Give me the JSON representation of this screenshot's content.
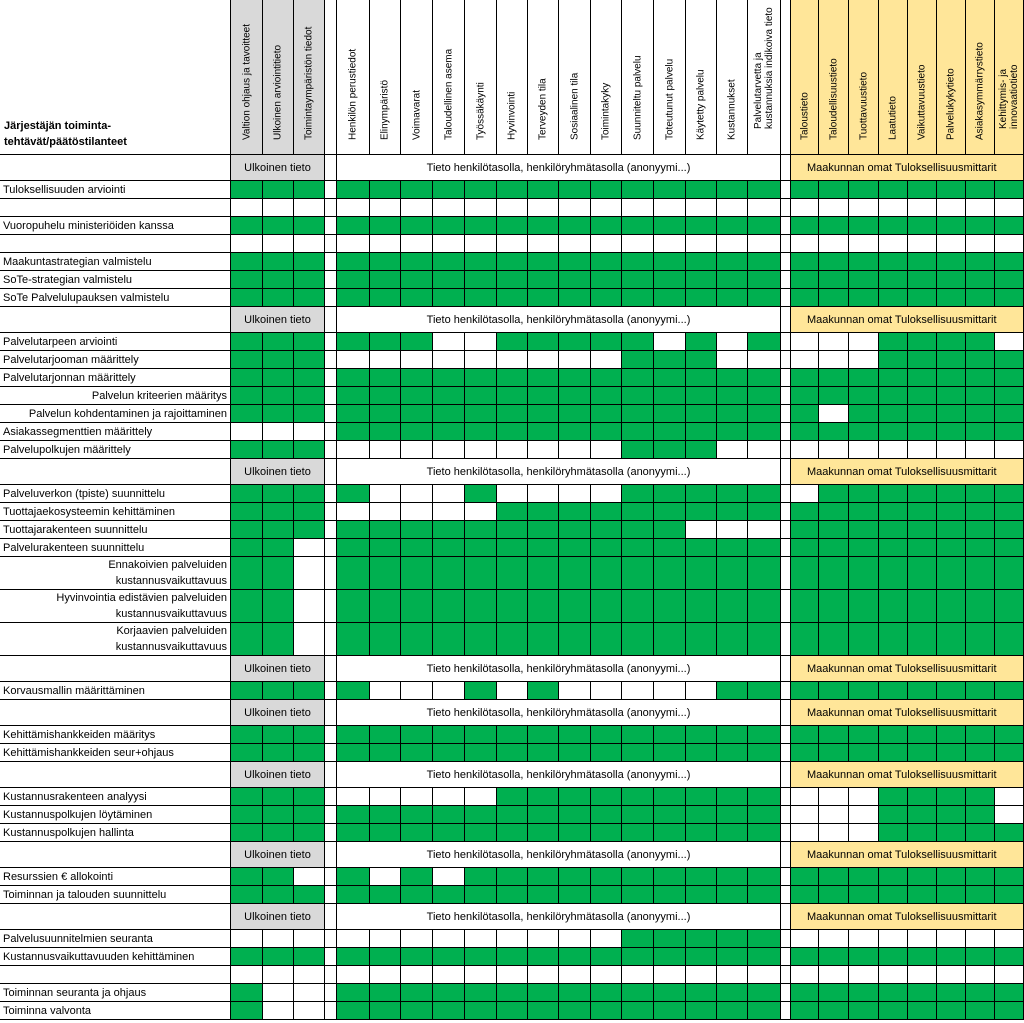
{
  "corner_label": "Järjestäjän toiminta-\ntehtävät/päätöstilanteet",
  "columns": [
    {
      "label": "Valtion ohjaus ja tavoitteet",
      "group": "gray"
    },
    {
      "label": "Ulkoinen arviointitieto",
      "group": "gray"
    },
    {
      "label": "Toimintaympäristön tiedot",
      "group": "gray"
    },
    {
      "label": "",
      "group": "gap"
    },
    {
      "label": "Henkilön perustiedot",
      "group": "white"
    },
    {
      "label": "Elinympäristö",
      "group": "white"
    },
    {
      "label": "Voimavarat",
      "group": "white"
    },
    {
      "label": "Taloudellinen asema",
      "group": "white"
    },
    {
      "label": "Työssäkäynti",
      "group": "white"
    },
    {
      "label": "Hyvinvointi",
      "group": "white"
    },
    {
      "label": "Terveyden tila",
      "group": "white"
    },
    {
      "label": "Sosiaalinen tila",
      "group": "white"
    },
    {
      "label": "Toimintakyky",
      "group": "white"
    },
    {
      "label": "Suunniteltu palvelu",
      "group": "white"
    },
    {
      "label": "Toteutunut palvelu",
      "group": "white"
    },
    {
      "label": "Käytetty palvelu",
      "group": "white"
    },
    {
      "label": "Kustannukset",
      "group": "white"
    },
    {
      "label": "Palvelutarvetta ja\nkustannuksia indikoiva tieto",
      "group": "white"
    },
    {
      "label": "",
      "group": "gap"
    },
    {
      "label": "Taloustieto",
      "group": "yellow"
    },
    {
      "label": "Taloudellisuustieto",
      "group": "yellow"
    },
    {
      "label": "Tuottavuustieto",
      "group": "yellow"
    },
    {
      "label": "Laatutieto",
      "group": "yellow"
    },
    {
      "label": "Vaikuttavuustieto",
      "group": "yellow"
    },
    {
      "label": "Palvelukykytieto",
      "group": "yellow"
    },
    {
      "label": "Asiakasymmärrystieto",
      "group": "yellow"
    },
    {
      "label": "Kehittymis- ja\ninnovaatiotieto",
      "group": "yellow"
    }
  ],
  "band_texts": {
    "gray": "Ulkoinen tieto",
    "middle": "Tieto henkilötasolla, henkilöryhmätasolla (anonyymi...)",
    "yellow": "Maakunnan omat Tuloksellisuusmittarit"
  },
  "rows": [
    {
      "type": "band",
      "label": ""
    },
    {
      "type": "data",
      "label": "Tuloksellisuuden arviointi",
      "cells": "GGG GGGGGGGGGGGGGG GGGGGGGG"
    },
    {
      "type": "blank",
      "label": ""
    },
    {
      "type": "data",
      "label": "Vuoropuhelu ministeriöiden kanssa",
      "cells": "GGG GGGGGGGGGGGGGG GGGGGGGG"
    },
    {
      "type": "blank",
      "label": ""
    },
    {
      "type": "data",
      "label": "Maakuntastrategian valmistelu",
      "cells": "GGG GGGGGGGGGGGGGG GGGGGGGG"
    },
    {
      "type": "data",
      "label": "SoTe-strategian valmistelu",
      "cells": "GGG GGGGGGGGGGGGGG GGGGGGGG"
    },
    {
      "type": "data",
      "label": "SoTe Palvelulupauksen valmistelu",
      "cells": "GGG GGGGGGGGGGGGGG GGGGGGGG"
    },
    {
      "type": "band",
      "label": ""
    },
    {
      "type": "data",
      "label": "Palvelutarpeen arviointi",
      "cells": "GGG GGGWWGGGGGWGWG WWWGGGGW"
    },
    {
      "type": "data",
      "label": "Palvelutarjooman määrittely",
      "cells": "GGG WWWWWWWWWGGGWW WWWGGGGG"
    },
    {
      "type": "data",
      "label": "Palvelutarjonnan määrittely",
      "cells": "GGG GGGGGGGGGGGGGG GGGGGGGG"
    },
    {
      "type": "data",
      "label": "Palvelun kriteerien määritys",
      "align": "right",
      "cells": "GGG GGGGGGGGGGGGGG GGGGGGGG"
    },
    {
      "type": "data",
      "label": "Palvelun kohdentaminen ja rajoittaminen",
      "align": "right",
      "cells": "GGG GGGGGGGGGGGGGG GWGGGGGG"
    },
    {
      "type": "data",
      "label": "Asiakassegmenttien määrittely",
      "cells": "WWW GGGGGGGGGGGGGG GGGGGGGG"
    },
    {
      "type": "data",
      "label": "Palvelupolkujen määrittely",
      "cells": "GGG WWWWWWWWWGGGWW WWWWWWWW"
    },
    {
      "type": "band",
      "label": ""
    },
    {
      "type": "data",
      "label": "Palveluverkon (tpiste) suunnittelu",
      "cells": "GGG GWWWGWWWWGGGGG WGGGGGGG"
    },
    {
      "type": "data",
      "label": "Tuottajaekosysteemin kehittäminen",
      "cells": "GGG WWWWWGGGGGGGGG GGGGGGGG"
    },
    {
      "type": "data",
      "label": "Tuottajarakenteen suunnittelu",
      "cells": "GGG GGGGGGGGGGGWWW GGGGGGGG"
    },
    {
      "type": "data",
      "label": "Palvelurakenteen suunnittelu",
      "cells": "GGW GGGGGGGGGGGGGG GGGGGGGG"
    },
    {
      "type": "data",
      "label": "Ennakoivien palveluiden\nkustannusvaikuttavuus",
      "two": true,
      "cells": "GGW GGGGGGGGGGGGGG GGGGGGGG"
    },
    {
      "type": "data",
      "label": "Hyvinvointia edistävien palveluiden\nkustannusvaikuttavuus",
      "two": true,
      "cells": "GGW GGGGGGGGGGGGGG GGGGGGGG"
    },
    {
      "type": "data",
      "label": "Korjaavien palveluiden\nkustannusvaikuttavuus",
      "two": true,
      "cells": "GGW GGGGGGGGGGGGGG GGGGGGGG"
    },
    {
      "type": "band",
      "label": ""
    },
    {
      "type": "data",
      "label": "Korvausmallin määrittäminen",
      "cells": "GGG GWWWGWGWWWWWGG GGGGGGGG"
    },
    {
      "type": "band",
      "label": ""
    },
    {
      "type": "data",
      "label": "Kehittämishankkeiden määritys",
      "cells": "GGG GGGGGGGGGGGGGG GGGGGGGG"
    },
    {
      "type": "data",
      "label": "Kehittämishankkeiden seur+ohjaus",
      "cells": "GGG GGGGGGGGGGGGGG GGGGGGGG"
    },
    {
      "type": "band",
      "label": ""
    },
    {
      "type": "data",
      "label": "Kustannusrakenteen analyysi",
      "cells": "GGG WWWWWGGGGGGGGG WWWGGGGW"
    },
    {
      "type": "data",
      "label": "Kustannuspolkujen löytäminen",
      "cells": "GGG GGGGGGGGGGGGGG WWWGGGGW"
    },
    {
      "type": "data",
      "label": "Kustannuspolkujen hallinta",
      "cells": "GGG GGGGGGGGGGGGGG WWWGGGGG"
    },
    {
      "type": "band",
      "label": ""
    },
    {
      "type": "data",
      "label": "Resurssien € allokointi",
      "cells": "GGW GWGWGGGGGGGGGG GGGGGGGG"
    },
    {
      "type": "data",
      "label": "Toiminnan ja talouden suunnittelu",
      "cells": "GGG GGGGGGGGGGGGGG GGGGGGGG"
    },
    {
      "type": "band",
      "label": ""
    },
    {
      "type": "data",
      "label": "Palvelusuunnitelmien seuranta",
      "cells": "WWW WWWWWWWWWGGGGG WWWWWWWW"
    },
    {
      "type": "data",
      "label": "Kustannusvaikuttavuuden kehittäminen",
      "cells": "GGG GGGGGGGGGGGGGG GGGGGGGG"
    },
    {
      "type": "blank",
      "label": ""
    },
    {
      "type": "data",
      "label": "Toiminnan seuranta ja ohjaus",
      "cells": "GWW GGGGGGGGGGGGGG GGGGGGGG"
    },
    {
      "type": "data",
      "label": "Toiminna valvonta",
      "cells": "GWW GGGGGGGGGGGGGG GGGGGGGG"
    }
  ],
  "colors": {
    "green": "#00b050",
    "gray": "#d9d9d9",
    "yellow": "#ffe699"
  }
}
